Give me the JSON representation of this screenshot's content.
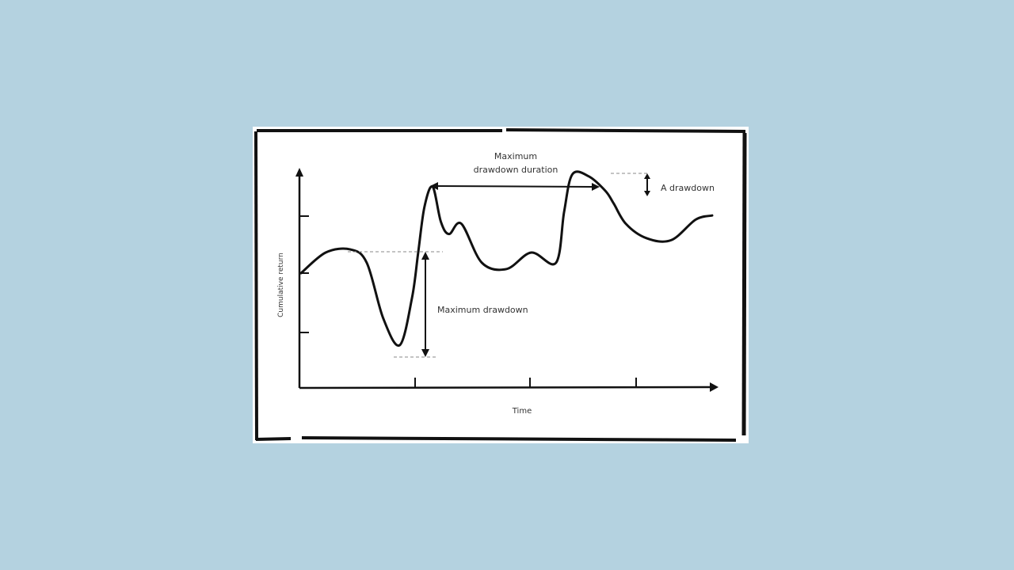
{
  "colors": {
    "page_background": "#b4d2e0",
    "card_background": "#ffffff",
    "ink": "#111111",
    "guide_dash": "#888888"
  },
  "chart_data": {
    "type": "line",
    "style": "hand-drawn sketch",
    "xlabel": "Time",
    "ylabel": "Cumulative return",
    "x_ticks": 3,
    "y_ticks": 3,
    "grid": false,
    "series": [
      {
        "x": [
          0.0,
          0.06,
          0.12,
          0.16,
          0.2,
          0.24,
          0.27,
          0.285,
          0.3,
          0.32,
          0.34,
          0.36,
          0.39,
          0.44,
          0.5,
          0.56,
          0.62,
          0.64,
          0.66,
          0.7,
          0.74,
          0.76,
          0.79,
          0.84,
          0.9,
          0.96,
          1.0
        ],
        "y": [
          0.5,
          0.6,
          0.615,
          0.55,
          0.28,
          0.15,
          0.38,
          0.6,
          0.82,
          0.92,
          0.75,
          0.69,
          0.74,
          0.55,
          0.52,
          0.6,
          0.55,
          0.8,
          0.98,
          0.97,
          0.9,
          0.84,
          0.74,
          0.67,
          0.66,
          0.76,
          0.78
        ]
      }
    ],
    "annotations": {
      "max_drawdown_duration": "Maximum\ndrawdown duration",
      "max_drawdown": "Maximum drawdown",
      "a_drawdown": "A drawdown"
    }
  }
}
